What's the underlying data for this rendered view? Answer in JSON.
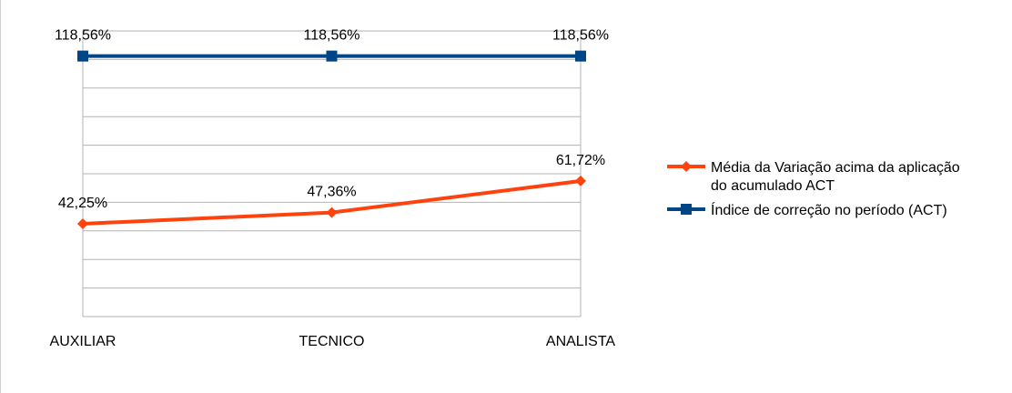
{
  "chart_data": {
    "type": "line",
    "categories": [
      "AUXILIAR",
      "TECNICO",
      "ANALISTA"
    ],
    "ylim": [
      0,
      130
    ],
    "grid": true,
    "legend_position": "right",
    "series": [
      {
        "name": "Média da Variação acima da aplicação do acumulado ACT",
        "legend_lines": [
          "Média da Variação acima da aplicação",
          "do acumulado ACT"
        ],
        "values": [
          42.25,
          47.36,
          61.72
        ],
        "labels": [
          "42,25%",
          "47,36%",
          "61,72%"
        ],
        "color": "#ff420e",
        "marker": "diamond-icon"
      },
      {
        "name": "Índice de correção no período (ACT)",
        "legend_lines": [
          "Índice de correção no período (ACT)"
        ],
        "values": [
          118.56,
          118.56,
          118.56
        ],
        "labels": [
          "118,56%",
          "118,56%",
          "118,56%"
        ],
        "color": "#004586",
        "marker": "square-icon"
      }
    ]
  }
}
